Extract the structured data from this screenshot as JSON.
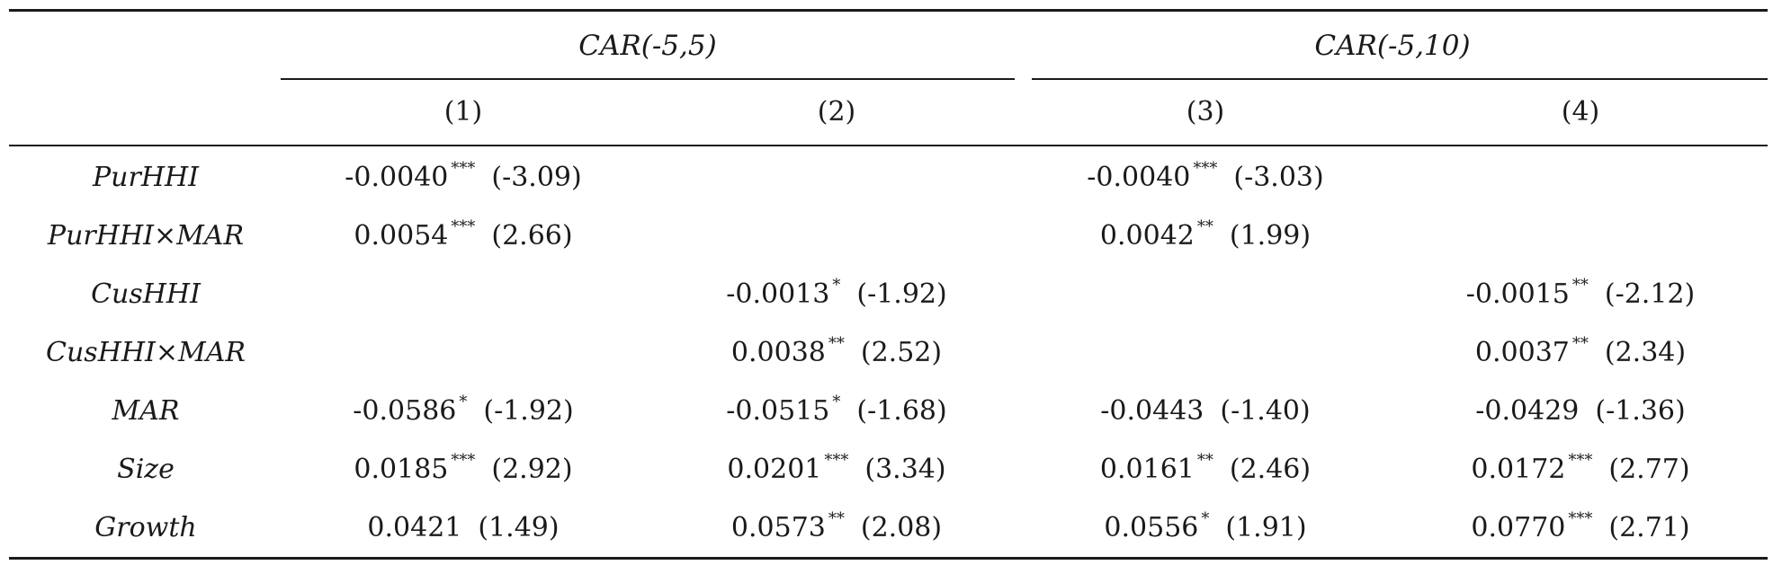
{
  "header": {
    "group1": "CAR(-5,5)",
    "group2": "CAR(-5,10)",
    "columns": [
      "(1)",
      "(2)",
      "(3)",
      "(4)"
    ]
  },
  "rows": [
    {
      "label": "PurHHI",
      "c1": {
        "coef": "-0.0040",
        "stars": "***",
        "t": "(-3.09)"
      },
      "c2": {
        "coef": "",
        "stars": "",
        "t": ""
      },
      "c3": {
        "coef": "-0.0040",
        "stars": "***",
        "t": "(-3.03)"
      },
      "c4": {
        "coef": "",
        "stars": "",
        "t": ""
      }
    },
    {
      "label": "PurHHI×MAR",
      "c1": {
        "coef": "0.0054",
        "stars": "***",
        "t": "(2.66)"
      },
      "c2": {
        "coef": "",
        "stars": "",
        "t": ""
      },
      "c3": {
        "coef": "0.0042",
        "stars": "**",
        "t": "(1.99)"
      },
      "c4": {
        "coef": "",
        "stars": "",
        "t": ""
      }
    },
    {
      "label": "CusHHI",
      "c1": {
        "coef": "",
        "stars": "",
        "t": ""
      },
      "c2": {
        "coef": "-0.0013",
        "stars": "*",
        "t": "(-1.92)"
      },
      "c3": {
        "coef": "",
        "stars": "",
        "t": ""
      },
      "c4": {
        "coef": "-0.0015",
        "stars": "**",
        "t": "(-2.12)"
      }
    },
    {
      "label": "CusHHI×MAR",
      "c1": {
        "coef": "",
        "stars": "",
        "t": ""
      },
      "c2": {
        "coef": "0.0038",
        "stars": "**",
        "t": "(2.52)"
      },
      "c3": {
        "coef": "",
        "stars": "",
        "t": ""
      },
      "c4": {
        "coef": "0.0037",
        "stars": "**",
        "t": "(2.34)"
      }
    },
    {
      "label": "MAR",
      "c1": {
        "coef": "-0.0586",
        "stars": "*",
        "t": "(-1.92)"
      },
      "c2": {
        "coef": "-0.0515",
        "stars": "*",
        "t": "(-1.68)"
      },
      "c3": {
        "coef": "-0.0443",
        "stars": "",
        "t": "(-1.40)"
      },
      "c4": {
        "coef": "-0.0429",
        "stars": "",
        "t": "(-1.36)"
      }
    },
    {
      "label": "Size",
      "c1": {
        "coef": "0.0185",
        "stars": "***",
        "t": "(2.92)"
      },
      "c2": {
        "coef": "0.0201",
        "stars": "***",
        "t": "(3.34)"
      },
      "c3": {
        "coef": "0.0161",
        "stars": "**",
        "t": "(2.46)"
      },
      "c4": {
        "coef": "0.0172",
        "stars": "***",
        "t": "(2.77)"
      }
    },
    {
      "label": "Growth",
      "c1": {
        "coef": "0.0421",
        "stars": "",
        "t": "(1.49)"
      },
      "c2": {
        "coef": "0.0573",
        "stars": "**",
        "t": "(2.08)"
      },
      "c3": {
        "coef": "0.0556",
        "stars": "*",
        "t": "(1.91)"
      },
      "c4": {
        "coef": "0.0770",
        "stars": "***",
        "t": "(2.71)"
      }
    }
  ]
}
